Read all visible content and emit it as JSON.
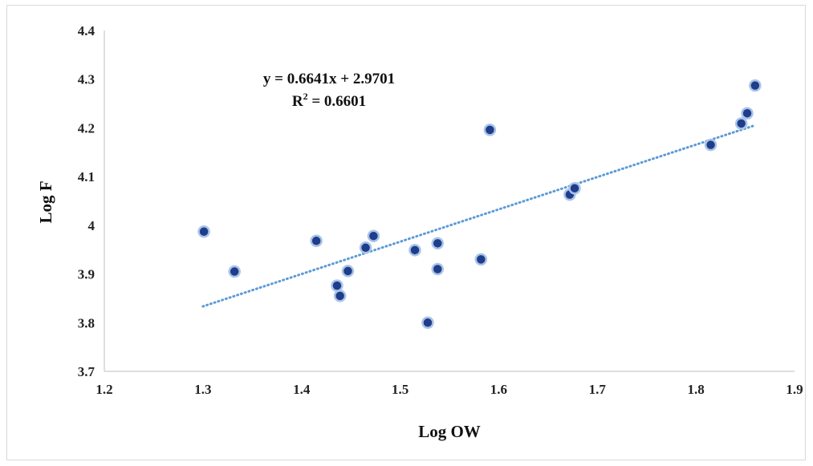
{
  "chart_data": {
    "type": "scatter",
    "title": "",
    "xlabel": "Log OW",
    "ylabel": "Log F",
    "xlim": [
      1.2,
      1.9
    ],
    "ylim": [
      3.7,
      4.4
    ],
    "xticks": [
      "1.2",
      "1.3",
      "1.4",
      "1.5",
      "1.6",
      "1.7",
      "1.8",
      "1.9"
    ],
    "yticks": [
      "3.7",
      "3.8",
      "3.9",
      "4",
      "4.1",
      "4.2",
      "4.3",
      "4.4"
    ],
    "grid": false,
    "points": [
      {
        "x": 1.301,
        "y": 3.987
      },
      {
        "x": 1.332,
        "y": 3.905
      },
      {
        "x": 1.415,
        "y": 3.968
      },
      {
        "x": 1.436,
        "y": 3.876
      },
      {
        "x": 1.439,
        "y": 3.855
      },
      {
        "x": 1.447,
        "y": 3.906
      },
      {
        "x": 1.465,
        "y": 3.954
      },
      {
        "x": 1.473,
        "y": 3.978
      },
      {
        "x": 1.515,
        "y": 3.949
      },
      {
        "x": 1.528,
        "y": 3.8
      },
      {
        "x": 1.538,
        "y": 3.963
      },
      {
        "x": 1.538,
        "y": 3.91
      },
      {
        "x": 1.582,
        "y": 3.93
      },
      {
        "x": 1.591,
        "y": 4.196
      },
      {
        "x": 1.672,
        "y": 4.063
      },
      {
        "x": 1.677,
        "y": 4.076
      },
      {
        "x": 1.815,
        "y": 4.165
      },
      {
        "x": 1.846,
        "y": 4.209
      },
      {
        "x": 1.852,
        "y": 4.23
      },
      {
        "x": 1.86,
        "y": 4.287
      }
    ],
    "trendline": {
      "type": "linear",
      "slope": 0.6641,
      "intercept": 2.9701,
      "x_range": [
        1.3,
        1.86
      ],
      "color": "#5b9bd5"
    },
    "equation_text": "y = 0.6641x + 2.9701",
    "r2_label": "R",
    "r2_sup": "2",
    "r2_value": " = 0.6601",
    "colors": {
      "marker_fill": "#1f3d8a",
      "marker_edge": "#a9c4e8",
      "axis": "#bfbfbf"
    }
  }
}
